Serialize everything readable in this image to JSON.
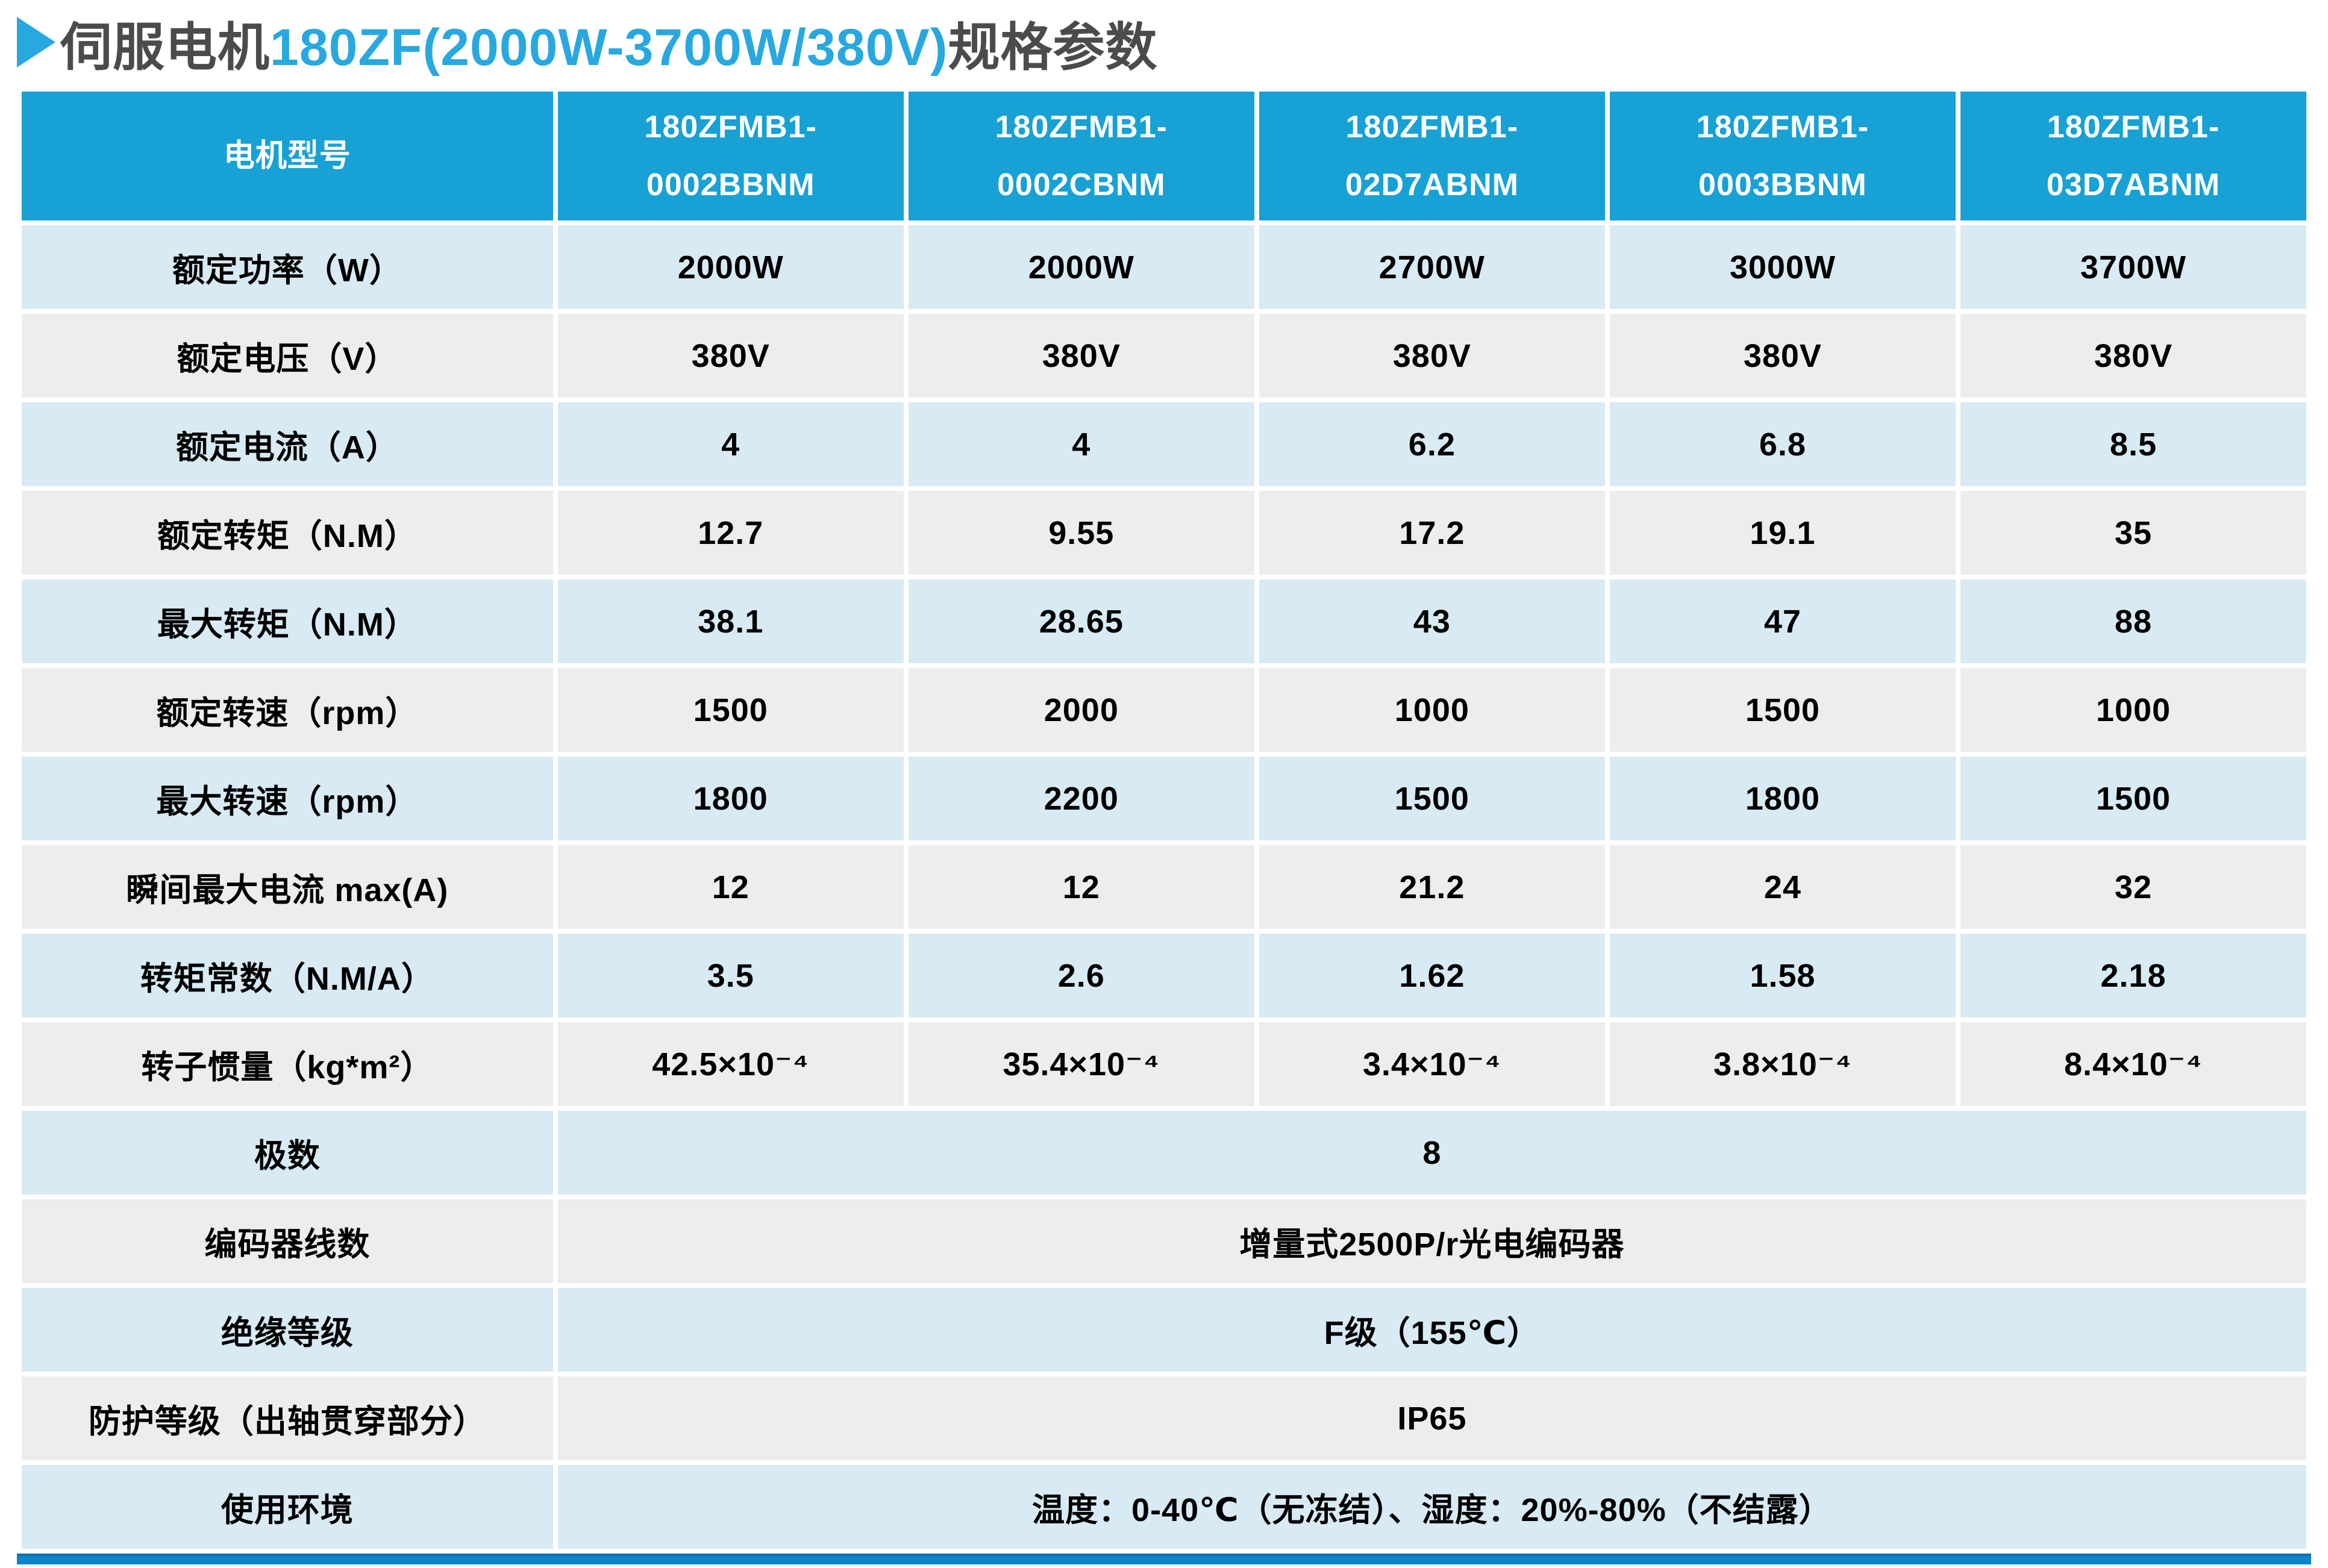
{
  "title": {
    "prefix": "伺服电机",
    "highlight": "180ZF(2000W-3700W/380V)",
    "suffix": "规格参数"
  },
  "icons": {
    "title_arrow": "right-pointing-triangle"
  },
  "colors": {
    "header_bg": "#17a1d5",
    "row_blue": "#d8eaf4",
    "row_gray": "#ededed",
    "accent_blue": "#29a8e0",
    "title_gray": "#4b4b4d",
    "header_text": "#ffffff",
    "cell_text": "#000000",
    "bottom_bar": "#0a84cb"
  },
  "table": {
    "header": [
      "电机型号",
      "180ZFMB1-\n0002BBNM",
      "180ZFMB1-\n0002CBNM",
      "180ZFMB1-\n02D7ABNM",
      "180ZFMB1-\n0003BBNM",
      "180ZFMB1-\n03D7ABNM"
    ],
    "rows": [
      {
        "label": "额定功率（W）",
        "values": [
          "2000W",
          "2000W",
          "2700W",
          "3000W",
          "3700W"
        ]
      },
      {
        "label": "额定电压（V）",
        "values": [
          "380V",
          "380V",
          "380V",
          "380V",
          "380V"
        ]
      },
      {
        "label": "额定电流（A）",
        "values": [
          "4",
          "4",
          "6.2",
          "6.8",
          "8.5"
        ]
      },
      {
        "label": "额定转矩（N.M）",
        "values": [
          "12.7",
          "9.55",
          "17.2",
          "19.1",
          "35"
        ]
      },
      {
        "label": "最大转矩（N.M）",
        "values": [
          "38.1",
          "28.65",
          "43",
          "47",
          "88"
        ]
      },
      {
        "label": "额定转速（rpm）",
        "values": [
          "1500",
          "2000",
          "1000",
          "1500",
          "1000"
        ]
      },
      {
        "label": "最大转速（rpm）",
        "values": [
          "1800",
          "2200",
          "1500",
          "1800",
          "1500"
        ]
      },
      {
        "label": "瞬间最大电流 max(A)",
        "values": [
          "12",
          "12",
          "21.2",
          "24",
          "32"
        ]
      },
      {
        "label": "转矩常数（N.M/A）",
        "values": [
          "3.5",
          "2.6",
          "1.62",
          "1.58",
          "2.18"
        ]
      },
      {
        "label": "转子惯量（kg*m²）",
        "values": [
          "42.5×10⁻⁴",
          "35.4×10⁻⁴",
          "3.4×10⁻⁴",
          "3.8×10⁻⁴",
          "8.4×10⁻⁴"
        ]
      },
      {
        "label": "极数",
        "merged": "8"
      },
      {
        "label": "编码器线数",
        "merged": "增量式2500P/r光电编码器"
      },
      {
        "label": "绝缘等级",
        "merged": "F级（155℃）"
      },
      {
        "label": "防护等级（出轴贯穿部分）",
        "merged": "IP65"
      },
      {
        "label": "使用环境",
        "merged": "温度：0-40℃（无冻结）、湿度：20%-80%（不结露）"
      }
    ]
  }
}
